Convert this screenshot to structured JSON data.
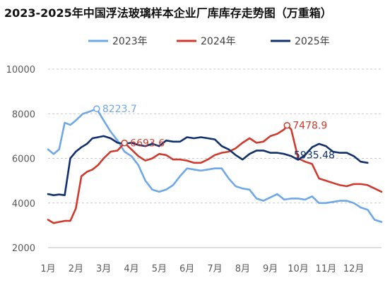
{
  "chart_data": {
    "type": "line",
    "title": "2023-2025年中国浮法玻璃样本企业厂库库存走势图（万重箱）",
    "xlabel": "",
    "ylabel": "",
    "ylim": [
      2000,
      10000
    ],
    "yticks": [
      "2000",
      "4000",
      "6000",
      "8000",
      "10000"
    ],
    "xticks": [
      "1月",
      "2月",
      "3月",
      "4月",
      "5月",
      "6月",
      "7月",
      "8月",
      "9月",
      "10月",
      "11月",
      "12月"
    ],
    "grid": "horizontal-dashed",
    "legend_position": "top",
    "series": [
      {
        "name": "2023年",
        "color": "#6fa8e8",
        "x": [
          1.0,
          1.2,
          1.4,
          1.6,
          1.8,
          2.0,
          2.25,
          2.5,
          2.75,
          3.0,
          3.25,
          3.5,
          3.75,
          4.0,
          4.25,
          4.5,
          4.75,
          5.0,
          5.25,
          5.5,
          5.75,
          6.0,
          6.25,
          6.5,
          6.75,
          7.0,
          7.25,
          7.5,
          7.75,
          8.0,
          8.25,
          8.5,
          8.75,
          9.0,
          9.25,
          9.5,
          9.75,
          10.0,
          10.25,
          10.5,
          10.75,
          11.0,
          11.25,
          11.5,
          11.75,
          12.0,
          12.25,
          12.5,
          12.75,
          13.0
        ],
        "values": [
          6400,
          6200,
          6400,
          7600,
          7500,
          7700,
          8000,
          8100,
          8223.7,
          7700,
          7200,
          6800,
          6300,
          6100,
          5700,
          5000,
          4600,
          4500,
          4600,
          4800,
          5200,
          5550,
          5500,
          5450,
          5500,
          5550,
          5550,
          5100,
          4750,
          4650,
          4600,
          4200,
          4100,
          4250,
          4400,
          4150,
          4200,
          4200,
          4150,
          4300,
          4000,
          4000,
          4050,
          4100,
          4100,
          4000,
          3800,
          3700,
          3250,
          3150
        ]
      },
      {
        "name": "2024年",
        "color": "#d03a2c",
        "x": [
          1.0,
          1.2,
          1.4,
          1.6,
          1.8,
          2.0,
          2.2,
          2.4,
          2.6,
          2.8,
          3.0,
          3.25,
          3.5,
          3.75,
          4.0,
          4.25,
          4.5,
          4.75,
          5.0,
          5.25,
          5.5,
          5.75,
          6.0,
          6.25,
          6.5,
          6.75,
          7.0,
          7.25,
          7.5,
          7.75,
          8.0,
          8.25,
          8.5,
          8.75,
          9.0,
          9.25,
          9.5,
          9.6,
          9.75,
          10.0,
          10.25,
          10.5,
          10.75,
          11.0,
          11.25,
          11.5,
          11.75,
          12.0,
          12.25,
          12.5,
          12.75,
          13.0
        ],
        "values": [
          3250,
          3100,
          3150,
          3200,
          3200,
          3750,
          5200,
          5400,
          5500,
          5700,
          6000,
          6300,
          6350,
          6693.6,
          6400,
          6100,
          5900,
          6000,
          6200,
          6150,
          5950,
          5950,
          5900,
          5800,
          5800,
          5950,
          6150,
          6250,
          6300,
          6450,
          6700,
          6900,
          6700,
          6750,
          7000,
          7100,
          7300,
          7478.9,
          7300,
          6000,
          5850,
          5750,
          5100,
          5000,
          4900,
          4800,
          4750,
          4850,
          4850,
          4800,
          4650,
          4500
        ]
      },
      {
        "name": "2025年",
        "color": "#11306e",
        "x": [
          1.0,
          1.2,
          1.4,
          1.6,
          1.8,
          2.0,
          2.2,
          2.4,
          2.6,
          2.8,
          3.0,
          3.25,
          3.5,
          3.75,
          4.0,
          4.25,
          4.5,
          4.75,
          5.0,
          5.25,
          5.5,
          5.75,
          6.0,
          6.25,
          6.5,
          6.75,
          7.0,
          7.25,
          7.5,
          7.75,
          8.0,
          8.25,
          8.5,
          8.75,
          9.0,
          9.25,
          9.5,
          9.75,
          10.0,
          10.25,
          10.5,
          10.75,
          11.0,
          11.25,
          11.5,
          11.75,
          12.0,
          12.25,
          12.5
        ],
        "values": [
          4400,
          4350,
          4380,
          4350,
          6000,
          6300,
          6500,
          6650,
          6900,
          6950,
          7000,
          6900,
          6700,
          6650,
          6700,
          6600,
          6550,
          6650,
          6550,
          6800,
          6750,
          6750,
          6950,
          6900,
          6950,
          6900,
          6850,
          6550,
          6400,
          6150,
          5950,
          6200,
          6350,
          6350,
          6250,
          6250,
          6200,
          6100,
          5935.48,
          6150,
          6500,
          6650,
          6550,
          6300,
          6250,
          6250,
          6100,
          5850,
          5800
        ]
      }
    ],
    "annotations": [
      {
        "text": "8223.7",
        "series": 0,
        "x": 2.75,
        "y": 8223.7
      },
      {
        "text": "6693.6",
        "series": 1,
        "x": 3.75,
        "y": 6693.6
      },
      {
        "text": "7478.9",
        "series": 1,
        "x": 9.6,
        "y": 7478.9
      },
      {
        "text": "5935.48",
        "series": 2,
        "x": 10.0,
        "y": 5935.48
      }
    ]
  }
}
